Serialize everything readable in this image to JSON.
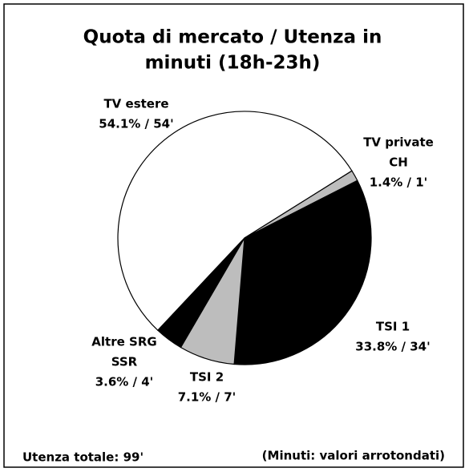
{
  "chart_data": {
    "type": "pie",
    "title": [
      "Quota di mercato / Utenza in",
      "minuti (18h-23h)"
    ],
    "categories": [
      [
        "TV estere"
      ],
      [
        "TV private",
        "CH"
      ],
      [
        "TSI 1"
      ],
      [
        "TSI 2"
      ],
      [
        "Altre SRG",
        "SSR"
      ]
    ],
    "values": [
      54.1,
      1.4,
      33.8,
      7.1,
      3.6
    ],
    "value_labels": [
      "54.1% / 54'",
      "1.4% / 1'",
      "33.8% / 34'",
      "7.1% / 7'",
      "3.6% / 4'"
    ],
    "colors": [
      "#ffffff",
      "#bdbdbd",
      "#000000",
      "#bdbdbd",
      "#000000"
    ],
    "notes": [
      "Utenza totale: 99'",
      "(Minuti: valori  arrotondati)"
    ]
  }
}
